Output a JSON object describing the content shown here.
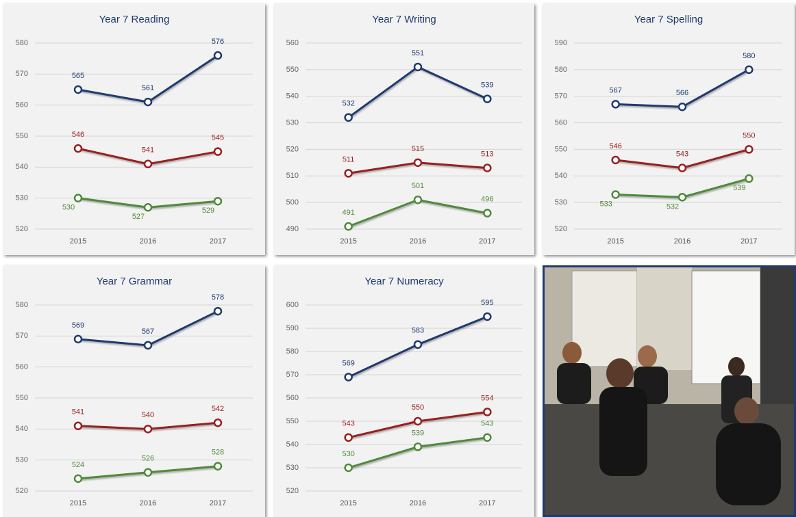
{
  "chart_data": [
    {
      "type": "line",
      "title": "Year 7 Reading",
      "categories": [
        "2015",
        "2016",
        "2017"
      ],
      "ylim": [
        520,
        580
      ],
      "yticks": [
        520,
        530,
        540,
        550,
        560,
        570,
        580
      ],
      "grid": true,
      "series": [
        {
          "color": "#1f3a70",
          "values": [
            565,
            561,
            576
          ]
        },
        {
          "color": "#9a1f1f",
          "values": [
            546,
            541,
            545
          ]
        },
        {
          "color": "#4f8a3a",
          "values": [
            530,
            527,
            529
          ]
        }
      ]
    },
    {
      "type": "line",
      "title": "Year 7 Writing",
      "categories": [
        "2015",
        "2016",
        "2017"
      ],
      "ylim": [
        490,
        560
      ],
      "yticks": [
        490,
        500,
        510,
        520,
        530,
        540,
        550,
        560
      ],
      "grid": true,
      "series": [
        {
          "color": "#1f3a70",
          "values": [
            532,
            551,
            539
          ]
        },
        {
          "color": "#9a1f1f",
          "values": [
            511,
            515,
            513
          ]
        },
        {
          "color": "#4f8a3a",
          "values": [
            491,
            501,
            496
          ]
        }
      ]
    },
    {
      "type": "line",
      "title": "Year 7 Spelling",
      "categories": [
        "2015",
        "2016",
        "2017"
      ],
      "ylim": [
        520,
        590
      ],
      "yticks": [
        520,
        530,
        540,
        550,
        560,
        570,
        580,
        590
      ],
      "grid": true,
      "series": [
        {
          "color": "#1f3a70",
          "values": [
            567,
            566,
            580
          ]
        },
        {
          "color": "#9a1f1f",
          "values": [
            546,
            543,
            550
          ]
        },
        {
          "color": "#4f8a3a",
          "values": [
            533,
            532,
            539
          ]
        }
      ]
    },
    {
      "type": "line",
      "title": "Year 7 Grammar",
      "categories": [
        "2015",
        "2016",
        "2017"
      ],
      "ylim": [
        520,
        580
      ],
      "yticks": [
        520,
        530,
        540,
        550,
        560,
        570,
        580
      ],
      "grid": true,
      "series": [
        {
          "color": "#1f3a70",
          "values": [
            569,
            567,
            578
          ]
        },
        {
          "color": "#9a1f1f",
          "values": [
            541,
            540,
            542
          ]
        },
        {
          "color": "#4f8a3a",
          "values": [
            524,
            526,
            528
          ]
        }
      ]
    },
    {
      "type": "line",
      "title": "Year 7 Numeracy",
      "categories": [
        "2015",
        "2016",
        "2017"
      ],
      "ylim": [
        520,
        600
      ],
      "yticks": [
        520,
        530,
        540,
        550,
        560,
        570,
        580,
        590,
        600
      ],
      "grid": true,
      "series": [
        {
          "color": "#1f3a70",
          "values": [
            569,
            583,
            595
          ]
        },
        {
          "color": "#9a1f1f",
          "values": [
            543,
            550,
            554
          ]
        },
        {
          "color": "#4f8a3a",
          "values": [
            530,
            539,
            543
          ]
        }
      ]
    }
  ]
}
